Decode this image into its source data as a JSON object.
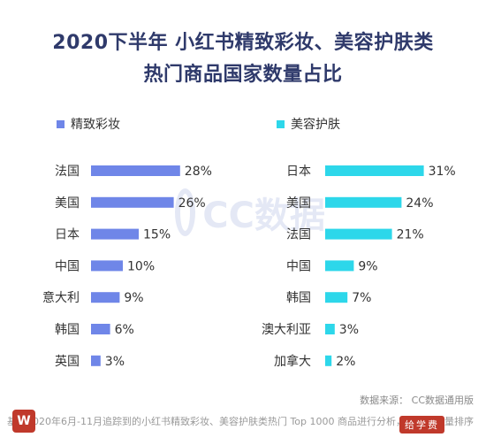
{
  "title_line1": "2020下半年 小红书精致彩妆、美容护肤类",
  "title_line2": "热门商品国家数量占比",
  "watermark_text": "CC数据",
  "source": "数据来源： CC数据通用版",
  "note": "基于2020年6月-11月追踪到的小红书精致彩妆、美容护肤类热门 Top 1000 商品进行分析，按照互动量排序",
  "logo_right": "给学费",
  "chart_data": [
    {
      "type": "bar",
      "orientation": "horizontal",
      "series_name": "精致彩妆",
      "color": "#6f86e8",
      "categories": [
        "法国",
        "美国",
        "日本",
        "中国",
        "意大利",
        "韩国",
        "英国"
      ],
      "values": [
        28,
        26,
        15,
        10,
        9,
        6,
        3
      ],
      "value_labels": [
        "28%",
        "26%",
        "15%",
        "10%",
        "9%",
        "6%",
        "3%"
      ],
      "unit": "%"
    },
    {
      "type": "bar",
      "orientation": "horizontal",
      "series_name": "美容护肤",
      "color": "#2dd7ea",
      "categories": [
        "日本",
        "美国",
        "法国",
        "中国",
        "韩国",
        "澳大利亚",
        "加拿大"
      ],
      "values": [
        31,
        24,
        21,
        9,
        7,
        3,
        2
      ],
      "value_labels": [
        "31%",
        "24%",
        "21%",
        "9%",
        "7%",
        "3%",
        "2%"
      ],
      "unit": "%"
    }
  ]
}
